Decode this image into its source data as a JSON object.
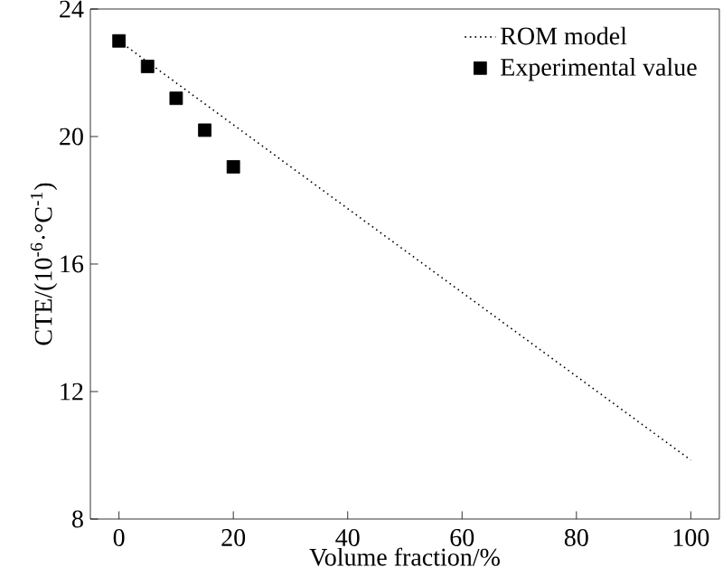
{
  "chart_data": {
    "type": "line",
    "xlabel": "Volume fraction/%",
    "ylabel": "CTE/(10$^{-6}$·°C$^{-1}$)",
    "xlim": [
      -5,
      105
    ],
    "ylim": [
      8,
      24
    ],
    "xticks": [
      0,
      20,
      40,
      60,
      80,
      100
    ],
    "yticks": [
      8,
      12,
      16,
      20,
      24
    ],
    "grid": false,
    "legend": "top right",
    "series": [
      {
        "name": "ROM model",
        "line_style": "dotted",
        "marker": "none",
        "color": "#000000",
        "x": [
          0,
          100
        ],
        "values": [
          23.0,
          9.85
        ]
      },
      {
        "name": "Experimental value",
        "type": "scatter",
        "marker": "square",
        "color": "#000000",
        "x": [
          0,
          5,
          10,
          15,
          20
        ],
        "values": [
          23.0,
          22.2,
          21.2,
          20.2,
          19.05
        ]
      }
    ]
  }
}
